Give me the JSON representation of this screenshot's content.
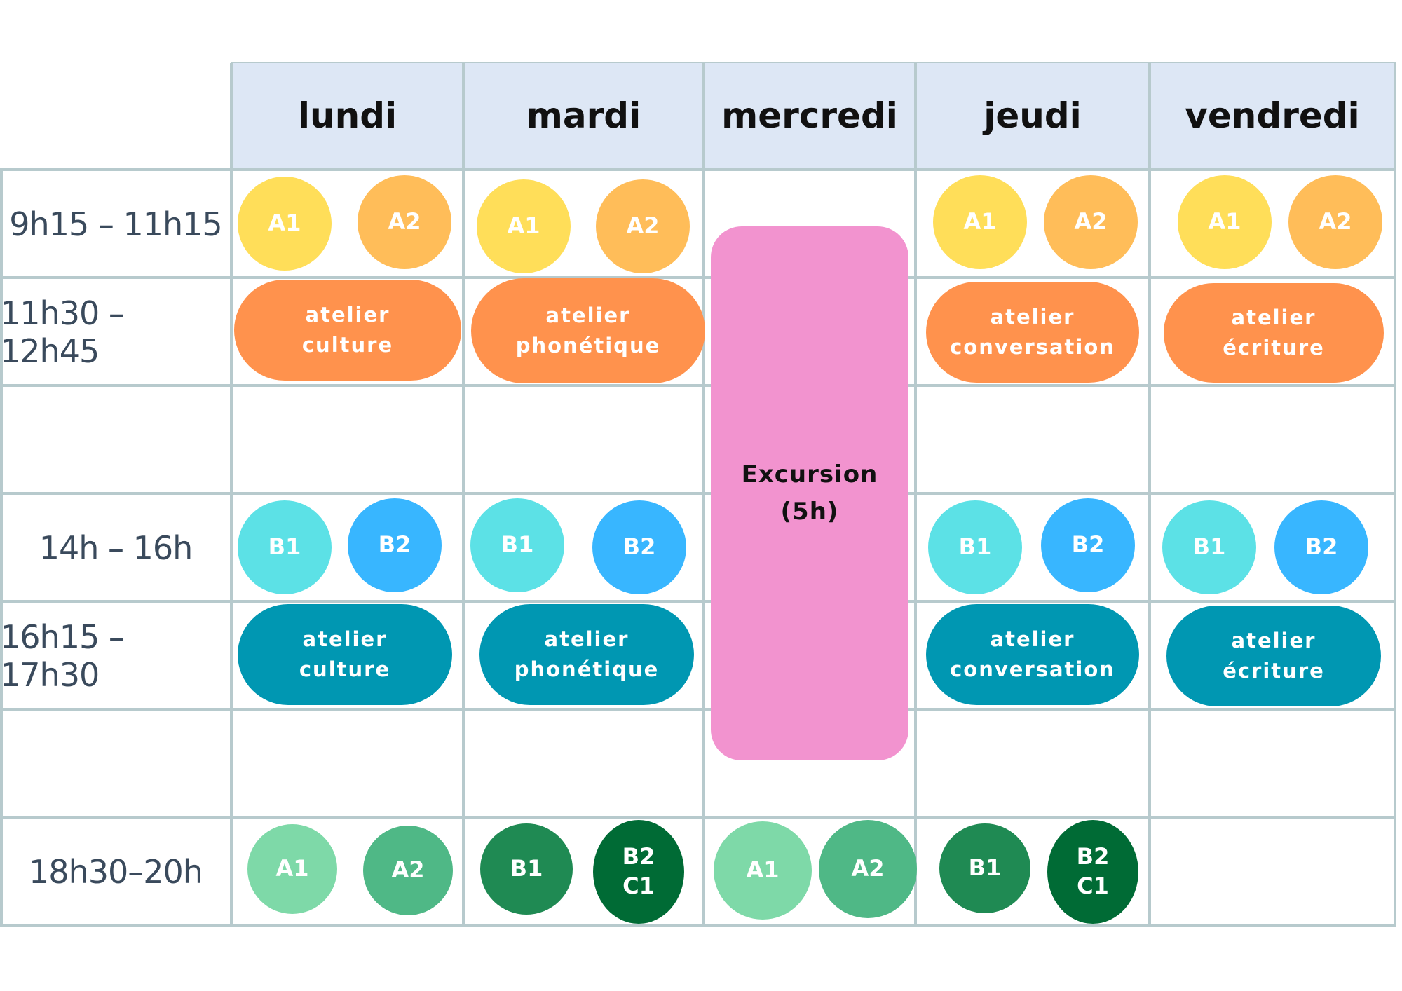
{
  "colors": {
    "grid_line": "#b7cacd",
    "header_bg": "#dde7f5",
    "a1_yellow": "#ffde59",
    "a2_orange": "#ffbd59",
    "b1_cyan": "#5ce1e6",
    "b2_blue": "#38b6ff",
    "workshop_morning": "#ff924d",
    "workshop_afternoon": "#0097b2",
    "evening_a1": "#7ed9a8",
    "evening_a2": "#4fb886",
    "evening_b1": "#1f8a53",
    "evening_b2c1": "#006b35",
    "excursion": "#f293cf"
  },
  "days": [
    "lundi",
    "mardi",
    "mercredi",
    "jeudi",
    "vendredi"
  ],
  "times": [
    "9h15 – 11h15",
    "11h30 – 12h45",
    "",
    "14h – 16h",
    "16h15 – 17h30",
    "",
    "18h30–20h"
  ],
  "slots": {
    "morning": {
      "lundi": [
        "A1",
        "A2"
      ],
      "mardi": [
        "A1",
        "A2"
      ],
      "jeudi": [
        "A1",
        "A2"
      ],
      "vendredi": [
        "A1",
        "A2"
      ]
    },
    "midday_workshops": {
      "lundi": [
        "atelier",
        "culture"
      ],
      "mardi": [
        "atelier",
        "phonétique"
      ],
      "jeudi": [
        "atelier",
        "conversation"
      ],
      "vendredi": [
        "atelier",
        "écriture"
      ]
    },
    "afternoon": {
      "lundi": [
        "B1",
        "B2"
      ],
      "mardi": [
        "B1",
        "B2"
      ],
      "jeudi": [
        "B1",
        "B2"
      ],
      "vendredi": [
        "B1",
        "B2"
      ]
    },
    "late_workshops": {
      "lundi": [
        "atelier",
        "culture"
      ],
      "mardi": [
        "atelier",
        "phonétique"
      ],
      "jeudi": [
        "atelier",
        "conversation"
      ],
      "vendredi": [
        "atelier",
        "écriture"
      ]
    },
    "evening": {
      "lundi": [
        "A1",
        "A2"
      ],
      "mardi": [
        "B1",
        "B2",
        "C1"
      ],
      "mercredi": [
        "A1",
        "A2"
      ],
      "jeudi": [
        "B1",
        "B2",
        "C1"
      ]
    }
  },
  "excursion": [
    "Excursion",
    "(5h)"
  ]
}
